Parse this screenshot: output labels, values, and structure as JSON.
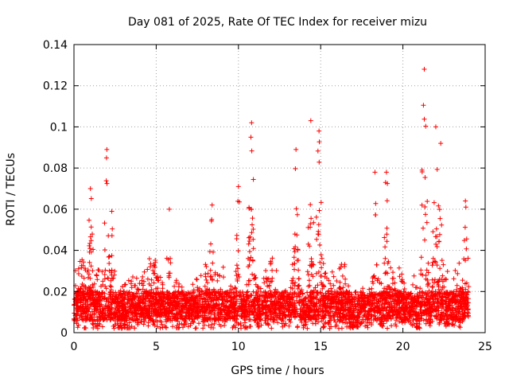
{
  "chart_data": {
    "type": "scatter",
    "title": "Day 081 of 2025, Rate Of TEC Index for receiver mizu",
    "xlabel": "GPS time / hours",
    "ylabel": "ROTI / TECUs",
    "xlim": [
      0,
      25
    ],
    "ylim": [
      0,
      0.14
    ],
    "x_ticks": [
      0,
      5,
      10,
      15,
      20,
      25
    ],
    "x_tick_labels": [
      "0",
      "5",
      "10",
      "15",
      "20",
      "25"
    ],
    "y_ticks": [
      0,
      0.02,
      0.04,
      0.06,
      0.08,
      0.1,
      0.12,
      0.14
    ],
    "y_tick_labels": [
      "0",
      "0.02",
      "0.04",
      "0.06",
      "0.08",
      "0.1",
      "0.12",
      "0.14"
    ],
    "grid": true,
    "marker": "plus",
    "color": "#ff0000",
    "series": [
      {
        "name": "ROTI",
        "data_extent": {
          "x_min": 0,
          "x_max": 24,
          "y_min": 0.002,
          "y_max": 0.128
        },
        "peaks": [
          {
            "x": 1.0,
            "y": 0.07
          },
          {
            "x": 2.0,
            "y": 0.089
          },
          {
            "x": 2.3,
            "y": 0.059
          },
          {
            "x": 5.8,
            "y": 0.06
          },
          {
            "x": 8.4,
            "y": 0.062
          },
          {
            "x": 10.0,
            "y": 0.071
          },
          {
            "x": 10.8,
            "y": 0.102
          },
          {
            "x": 13.5,
            "y": 0.089
          },
          {
            "x": 14.4,
            "y": 0.103
          },
          {
            "x": 14.9,
            "y": 0.098
          },
          {
            "x": 18.3,
            "y": 0.078
          },
          {
            "x": 19.0,
            "y": 0.078
          },
          {
            "x": 21.3,
            "y": 0.128
          },
          {
            "x": 22.0,
            "y": 0.1
          },
          {
            "x": 22.3,
            "y": 0.092
          },
          {
            "x": 23.8,
            "y": 0.064
          }
        ]
      }
    ]
  }
}
